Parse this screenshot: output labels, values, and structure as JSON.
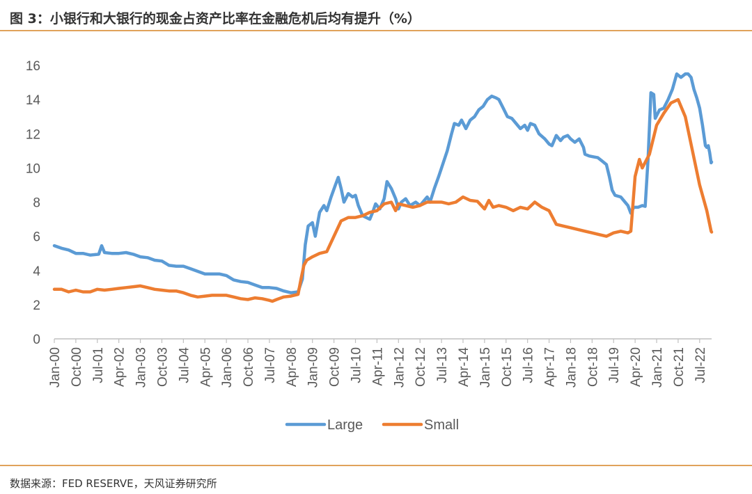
{
  "header": {
    "title": "图 3：小银行和大银行的现金占资产比率在金融危机后均有提升（%）"
  },
  "footer": {
    "source": "数据来源：FED RESERVE，天风证券研究所"
  },
  "colors": {
    "large": "#5b9bd5",
    "small": "#ed7d31",
    "accent_rule": "#e0a25a",
    "axis": "#bfbfbf",
    "text": "#595959"
  },
  "chart_data": {
    "type": "line",
    "title": "图 3：小银行和大银行的现金占资产比率在金融危机后均有提升（%）",
    "xlabel": "",
    "ylabel": "",
    "ylim": [
      0,
      16
    ],
    "yticks": [
      "0",
      "2",
      "4",
      "6",
      "8",
      "10",
      "12",
      "14",
      "16"
    ],
    "x_tick_labels": [
      "Jan-00",
      "Oct-00",
      "Jul-01",
      "Apr-02",
      "Jan-03",
      "Oct-03",
      "Jul-04",
      "Apr-05",
      "Jan-06",
      "Oct-06",
      "Jul-07",
      "Apr-08",
      "Jan-09",
      "Oct-09",
      "Jul-10",
      "Apr-11",
      "Jan-12",
      "Oct-12",
      "Jul-13",
      "Apr-14",
      "Jan-15",
      "Oct-15",
      "Jul-16",
      "Apr-17",
      "Jan-18",
      "Oct-18",
      "Jul-19",
      "Apr-20",
      "Jan-21",
      "Oct-21",
      "Jul-22"
    ],
    "x_range": [
      2000.0,
      2022.917
    ],
    "legend_position": "bottom",
    "series": [
      {
        "name": "Large",
        "color": "#5b9bd5",
        "points": [
          [
            2000.0,
            5.45
          ],
          [
            2000.25,
            5.3
          ],
          [
            2000.5,
            5.2
          ],
          [
            2000.75,
            5.0
          ],
          [
            2001.0,
            5.0
          ],
          [
            2001.25,
            4.9
          ],
          [
            2001.55,
            4.95
          ],
          [
            2001.65,
            5.45
          ],
          [
            2001.75,
            5.05
          ],
          [
            2002.0,
            5.0
          ],
          [
            2002.25,
            5.0
          ],
          [
            2002.5,
            5.05
          ],
          [
            2002.75,
            4.95
          ],
          [
            2003.0,
            4.8
          ],
          [
            2003.25,
            4.75
          ],
          [
            2003.5,
            4.6
          ],
          [
            2003.75,
            4.55
          ],
          [
            2004.0,
            4.3
          ],
          [
            2004.25,
            4.25
          ],
          [
            2004.5,
            4.25
          ],
          [
            2004.75,
            4.1
          ],
          [
            2005.0,
            3.95
          ],
          [
            2005.25,
            3.8
          ],
          [
            2005.5,
            3.8
          ],
          [
            2005.75,
            3.8
          ],
          [
            2006.0,
            3.7
          ],
          [
            2006.25,
            3.45
          ],
          [
            2006.5,
            3.35
          ],
          [
            2006.75,
            3.3
          ],
          [
            2007.0,
            3.15
          ],
          [
            2007.25,
            3.0
          ],
          [
            2007.5,
            3.0
          ],
          [
            2007.75,
            2.95
          ],
          [
            2008.0,
            2.8
          ],
          [
            2008.25,
            2.7
          ],
          [
            2008.5,
            2.75
          ],
          [
            2008.65,
            3.5
          ],
          [
            2008.75,
            5.5
          ],
          [
            2008.85,
            6.6
          ],
          [
            2009.0,
            6.8
          ],
          [
            2009.1,
            6.0
          ],
          [
            2009.25,
            7.4
          ],
          [
            2009.4,
            7.8
          ],
          [
            2009.5,
            7.5
          ],
          [
            2009.65,
            8.3
          ],
          [
            2009.8,
            9.0
          ],
          [
            2009.9,
            9.45
          ],
          [
            2010.0,
            8.8
          ],
          [
            2010.1,
            8.0
          ],
          [
            2010.25,
            8.5
          ],
          [
            2010.4,
            8.3
          ],
          [
            2010.5,
            8.4
          ],
          [
            2010.6,
            7.8
          ],
          [
            2010.75,
            7.2
          ],
          [
            2011.0,
            7.0
          ],
          [
            2011.1,
            7.4
          ],
          [
            2011.2,
            7.9
          ],
          [
            2011.35,
            7.6
          ],
          [
            2011.5,
            8.2
          ],
          [
            2011.6,
            9.2
          ],
          [
            2011.75,
            8.8
          ],
          [
            2011.9,
            8.2
          ],
          [
            2012.0,
            7.6
          ],
          [
            2012.1,
            8.0
          ],
          [
            2012.25,
            8.2
          ],
          [
            2012.4,
            7.8
          ],
          [
            2012.5,
            7.9
          ],
          [
            2012.6,
            8.0
          ],
          [
            2012.75,
            7.8
          ],
          [
            2012.9,
            8.1
          ],
          [
            2013.0,
            8.3
          ],
          [
            2013.1,
            8.0
          ],
          [
            2013.25,
            8.8
          ],
          [
            2013.4,
            9.5
          ],
          [
            2013.5,
            10.0
          ],
          [
            2013.7,
            11.0
          ],
          [
            2013.85,
            12.0
          ],
          [
            2013.95,
            12.6
          ],
          [
            2014.1,
            12.5
          ],
          [
            2014.2,
            12.8
          ],
          [
            2014.35,
            12.3
          ],
          [
            2014.5,
            12.8
          ],
          [
            2014.65,
            13.0
          ],
          [
            2014.8,
            13.4
          ],
          [
            2014.95,
            13.6
          ],
          [
            2015.1,
            14.0
          ],
          [
            2015.25,
            14.2
          ],
          [
            2015.4,
            14.1
          ],
          [
            2015.5,
            14.0
          ],
          [
            2015.65,
            13.5
          ],
          [
            2015.8,
            13.0
          ],
          [
            2015.95,
            12.9
          ],
          [
            2016.1,
            12.6
          ],
          [
            2016.25,
            12.3
          ],
          [
            2016.4,
            12.5
          ],
          [
            2016.5,
            12.2
          ],
          [
            2016.6,
            12.6
          ],
          [
            2016.75,
            12.5
          ],
          [
            2016.9,
            12.0
          ],
          [
            2017.1,
            11.7
          ],
          [
            2017.25,
            11.4
          ],
          [
            2017.35,
            11.3
          ],
          [
            2017.5,
            11.9
          ],
          [
            2017.65,
            11.6
          ],
          [
            2017.75,
            11.8
          ],
          [
            2017.9,
            11.9
          ],
          [
            2018.0,
            11.7
          ],
          [
            2018.15,
            11.5
          ],
          [
            2018.3,
            11.7
          ],
          [
            2018.45,
            11.2
          ],
          [
            2018.5,
            10.8
          ],
          [
            2018.65,
            10.7
          ],
          [
            2018.8,
            10.65
          ],
          [
            2018.95,
            10.6
          ],
          [
            2019.1,
            10.4
          ],
          [
            2019.25,
            10.2
          ],
          [
            2019.35,
            9.5
          ],
          [
            2019.45,
            8.7
          ],
          [
            2019.55,
            8.4
          ],
          [
            2019.75,
            8.3
          ],
          [
            2019.9,
            8.0
          ],
          [
            2020.0,
            7.8
          ],
          [
            2020.1,
            7.35
          ],
          [
            2020.2,
            7.7
          ],
          [
            2020.35,
            7.7
          ],
          [
            2020.5,
            7.8
          ],
          [
            2020.6,
            7.75
          ],
          [
            2020.7,
            10.5
          ],
          [
            2020.8,
            14.4
          ],
          [
            2020.9,
            14.3
          ],
          [
            2020.95,
            12.9
          ],
          [
            2021.1,
            13.4
          ],
          [
            2021.25,
            13.5
          ],
          [
            2021.4,
            14.0
          ],
          [
            2021.55,
            14.6
          ],
          [
            2021.7,
            15.5
          ],
          [
            2021.85,
            15.3
          ],
          [
            2022.0,
            15.5
          ],
          [
            2022.1,
            15.5
          ],
          [
            2022.2,
            15.3
          ],
          [
            2022.3,
            14.6
          ],
          [
            2022.4,
            14.1
          ],
          [
            2022.5,
            13.5
          ],
          [
            2022.6,
            12.5
          ],
          [
            2022.7,
            11.3
          ],
          [
            2022.75,
            11.2
          ],
          [
            2022.8,
            11.3
          ],
          [
            2022.85,
            10.9
          ],
          [
            2022.9,
            10.3
          ],
          [
            2022.917,
            10.35
          ]
        ]
      },
      {
        "name": "Small",
        "color": "#ed7d31",
        "points": [
          [
            2000.0,
            2.9
          ],
          [
            2000.25,
            2.9
          ],
          [
            2000.5,
            2.75
          ],
          [
            2000.75,
            2.85
          ],
          [
            2001.0,
            2.75
          ],
          [
            2001.25,
            2.75
          ],
          [
            2001.5,
            2.9
          ],
          [
            2001.75,
            2.85
          ],
          [
            2002.0,
            2.9
          ],
          [
            2002.25,
            2.95
          ],
          [
            2002.5,
            3.0
          ],
          [
            2002.75,
            3.05
          ],
          [
            2003.0,
            3.1
          ],
          [
            2003.25,
            3.0
          ],
          [
            2003.5,
            2.9
          ],
          [
            2003.75,
            2.85
          ],
          [
            2004.0,
            2.8
          ],
          [
            2004.25,
            2.8
          ],
          [
            2004.5,
            2.7
          ],
          [
            2004.75,
            2.55
          ],
          [
            2005.0,
            2.45
          ],
          [
            2005.25,
            2.5
          ],
          [
            2005.5,
            2.55
          ],
          [
            2005.75,
            2.55
          ],
          [
            2006.0,
            2.55
          ],
          [
            2006.25,
            2.45
          ],
          [
            2006.5,
            2.35
          ],
          [
            2006.75,
            2.3
          ],
          [
            2007.0,
            2.4
          ],
          [
            2007.25,
            2.35
          ],
          [
            2007.5,
            2.25
          ],
          [
            2007.6,
            2.2
          ],
          [
            2007.75,
            2.3
          ],
          [
            2008.0,
            2.45
          ],
          [
            2008.25,
            2.5
          ],
          [
            2008.5,
            2.6
          ],
          [
            2008.6,
            3.5
          ],
          [
            2008.7,
            4.3
          ],
          [
            2008.8,
            4.6
          ],
          [
            2009.0,
            4.8
          ],
          [
            2009.25,
            5.0
          ],
          [
            2009.5,
            5.1
          ],
          [
            2009.75,
            6.0
          ],
          [
            2010.0,
            6.9
          ],
          [
            2010.25,
            7.1
          ],
          [
            2010.5,
            7.1
          ],
          [
            2010.75,
            7.2
          ],
          [
            2011.0,
            7.4
          ],
          [
            2011.25,
            7.5
          ],
          [
            2011.5,
            7.9
          ],
          [
            2011.75,
            8.0
          ],
          [
            2011.9,
            7.5
          ],
          [
            2012.0,
            7.9
          ],
          [
            2012.25,
            7.8
          ],
          [
            2012.5,
            7.7
          ],
          [
            2012.75,
            7.8
          ],
          [
            2013.0,
            8.0
          ],
          [
            2013.25,
            8.0
          ],
          [
            2013.5,
            8.0
          ],
          [
            2013.75,
            7.9
          ],
          [
            2014.0,
            8.0
          ],
          [
            2014.25,
            8.3
          ],
          [
            2014.5,
            8.1
          ],
          [
            2014.75,
            8.05
          ],
          [
            2015.0,
            7.6
          ],
          [
            2015.15,
            8.1
          ],
          [
            2015.3,
            7.7
          ],
          [
            2015.5,
            7.8
          ],
          [
            2015.75,
            7.7
          ],
          [
            2016.0,
            7.5
          ],
          [
            2016.25,
            7.7
          ],
          [
            2016.5,
            7.6
          ],
          [
            2016.75,
            8.0
          ],
          [
            2017.0,
            7.7
          ],
          [
            2017.25,
            7.5
          ],
          [
            2017.5,
            6.7
          ],
          [
            2017.75,
            6.6
          ],
          [
            2018.0,
            6.5
          ],
          [
            2018.25,
            6.4
          ],
          [
            2018.5,
            6.3
          ],
          [
            2018.75,
            6.2
          ],
          [
            2019.0,
            6.1
          ],
          [
            2019.25,
            6.0
          ],
          [
            2019.5,
            6.2
          ],
          [
            2019.75,
            6.3
          ],
          [
            2020.0,
            6.2
          ],
          [
            2020.1,
            6.3
          ],
          [
            2020.25,
            9.5
          ],
          [
            2020.4,
            10.5
          ],
          [
            2020.5,
            10.0
          ],
          [
            2020.75,
            10.8
          ],
          [
            2021.0,
            12.5
          ],
          [
            2021.25,
            13.2
          ],
          [
            2021.5,
            13.8
          ],
          [
            2021.75,
            14.0
          ],
          [
            2022.0,
            13.0
          ],
          [
            2022.25,
            11.0
          ],
          [
            2022.5,
            9.0
          ],
          [
            2022.75,
            7.5
          ],
          [
            2022.9,
            6.3
          ],
          [
            2022.917,
            6.25
          ]
        ]
      }
    ]
  }
}
